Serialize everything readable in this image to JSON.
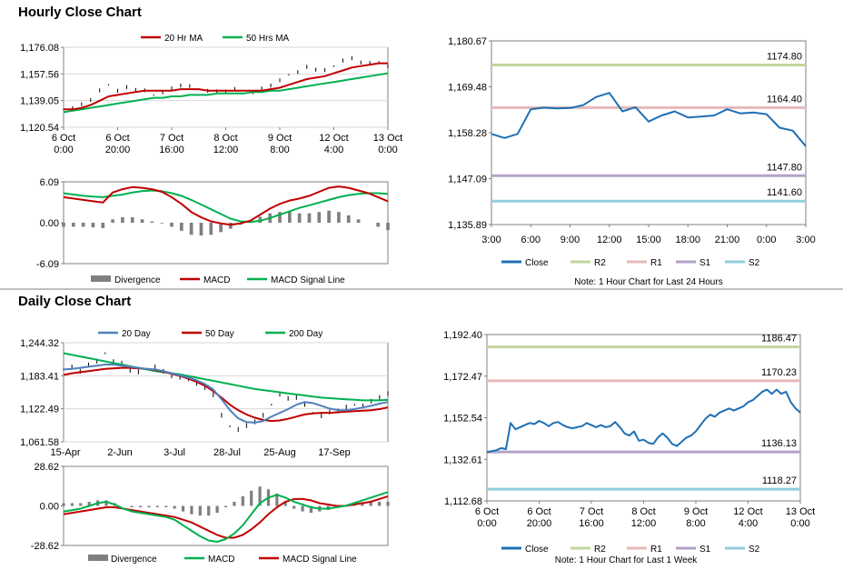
{
  "sections": {
    "hourly_title": "Hourly Close Chart",
    "daily_title": "Daily Close Chart"
  },
  "colors": {
    "red": "#c00000",
    "green": "#00b050",
    "blue": "#1f6fb5",
    "lightblue": "#4f81bd",
    "r2": "#c3d69b",
    "r1": "#e6b9b8",
    "s1": "#b3a2c7",
    "s2": "#92cddc",
    "divergence": "#7f7f7f",
    "grid": "#d9d9d9"
  },
  "chart_data": [
    {
      "id": "hourly_price",
      "type": "line",
      "legend": [
        "20 Hr MA",
        "50 Hrs MA"
      ],
      "y_ticks": [
        "1,176.08",
        "1,157.56",
        "1,139.05",
        "1,120.54"
      ],
      "ylim": [
        1120.54,
        1176.08
      ],
      "x_ticks": [
        [
          "6 Oct",
          "0:00"
        ],
        [
          "6 Oct",
          "20:00"
        ],
        [
          "7 Oct",
          "16:00"
        ],
        [
          "8 Oct",
          "12:00"
        ],
        [
          "9 Oct",
          "8:00"
        ],
        [
          "12 Oct",
          "4:00"
        ],
        [
          "13 Oct",
          "0:00"
        ]
      ],
      "close": [
        1133,
        1134,
        1136,
        1140,
        1146,
        1150,
        1146,
        1148,
        1147,
        1146,
        1143,
        1145,
        1147,
        1150,
        1149,
        1147,
        1146,
        1145,
        1146,
        1147,
        1146,
        1145,
        1147,
        1150,
        1153,
        1157,
        1159,
        1162,
        1161,
        1160,
        1163,
        1167,
        1168,
        1166,
        1165,
        1166,
        1163
      ],
      "ma20": [
        1133,
        1133,
        1134,
        1136,
        1139,
        1142,
        1143,
        1144,
        1145,
        1146,
        1146,
        1146,
        1146,
        1147,
        1147,
        1147,
        1146,
        1146,
        1146,
        1146,
        1146,
        1146,
        1146,
        1147,
        1148,
        1150,
        1152,
        1154,
        1155,
        1156,
        1158,
        1160,
        1162,
        1163,
        1164,
        1165,
        1165
      ],
      "ma50": [
        1131,
        1132,
        1133,
        1134,
        1135,
        1136,
        1137,
        1138,
        1139,
        1140,
        1141,
        1141,
        1142,
        1142,
        1143,
        1143,
        1143,
        1144,
        1144,
        1144,
        1144,
        1145,
        1145,
        1146,
        1146,
        1147,
        1148,
        1149,
        1150,
        1151,
        1152,
        1153,
        1154,
        1155,
        1156,
        1157,
        1158
      ]
    },
    {
      "id": "hourly_macd",
      "type": "line",
      "legend": [
        "Divergence",
        "MACD",
        "MACD Signal Line"
      ],
      "y_ticks": [
        "6.09",
        "0.00",
        "-6.09"
      ],
      "ylim": [
        -6.09,
        6.09
      ],
      "macd": [
        3.8,
        3.6,
        3.4,
        3.2,
        3.0,
        4.5,
        5.0,
        5.3,
        5.2,
        5.0,
        4.6,
        3.8,
        2.8,
        1.6,
        0.8,
        0.2,
        -0.1,
        -0.3,
        -0.1,
        0.3,
        1.2,
        2.1,
        2.8,
        3.3,
        3.6,
        4.0,
        4.6,
        5.2,
        5.4,
        5.2,
        4.8,
        4.4,
        3.8,
        3.2
      ],
      "signal": [
        4.4,
        4.2,
        4.0,
        3.9,
        3.8,
        4.0,
        4.2,
        4.5,
        4.7,
        4.8,
        4.7,
        4.4,
        4.0,
        3.4,
        2.7,
        2.0,
        1.3,
        0.6,
        0.2,
        0.1,
        0.3,
        0.7,
        1.2,
        1.7,
        2.2,
        2.6,
        3.0,
        3.4,
        3.8,
        4.1,
        4.3,
        4.4,
        4.4,
        4.3
      ],
      "divergence": [
        -0.6,
        -0.6,
        -0.6,
        -0.7,
        -0.8,
        0.5,
        0.8,
        0.8,
        0.5,
        0.2,
        -0.1,
        -0.6,
        -1.2,
        -1.8,
        -1.9,
        -1.8,
        -1.4,
        -0.9,
        -0.3,
        0.2,
        0.9,
        1.4,
        1.6,
        1.6,
        1.4,
        1.4,
        1.6,
        1.8,
        1.6,
        1.1,
        0.5,
        0.0,
        -0.6,
        -1.1
      ]
    },
    {
      "id": "hourly_levels",
      "type": "line",
      "legend": [
        "Close",
        "R2",
        "R1",
        "S1",
        "S2"
      ],
      "y_ticks": [
        "1,180.67",
        "1,169.48",
        "1,158.28",
        "1,147.09",
        "1,135.89"
      ],
      "ylim": [
        1135.89,
        1180.67
      ],
      "x_ticks": [
        "3:00",
        "6:00",
        "9:00",
        "12:00",
        "15:00",
        "18:00",
        "21:00",
        "0:00",
        "3:00"
      ],
      "close": [
        1158,
        1157,
        1158,
        1164,
        1164.4,
        1164.2,
        1164.3,
        1165,
        1167,
        1168,
        1163.5,
        1164.5,
        1161,
        1162.5,
        1163.5,
        1162,
        1162.2,
        1162.5,
        1164,
        1163,
        1163.2,
        1162.8,
        1159.5,
        1158.8,
        1155
      ],
      "levels": {
        "R2": 1174.8,
        "R1": 1164.4,
        "S1": 1147.8,
        "S2": 1141.6
      },
      "level_labels": {
        "R2": "1174.80",
        "R1": "1164.40",
        "S1": "1147.80",
        "S2": "1141.60"
      },
      "note": "Note: 1 Hour Chart for Last 24 Hours"
    },
    {
      "id": "daily_price",
      "type": "line",
      "legend": [
        "20 Day",
        "50 Day",
        "200 Day"
      ],
      "y_ticks": [
        "1,244.32",
        "1,183.41",
        "1,122.49",
        "1,061.58"
      ],
      "ylim": [
        1061.58,
        1244.32
      ],
      "x_ticks": [
        "15-Apr",
        "2-Jun",
        "3-Jul",
        "28-Jul",
        "25-Aug",
        "17-Sep"
      ],
      "close": [
        1195,
        1200,
        1190,
        1205,
        1210,
        1225,
        1210,
        1205,
        1195,
        1190,
        1195,
        1200,
        1190,
        1185,
        1180,
        1175,
        1170,
        1160,
        1150,
        1110,
        1090,
        1085,
        1090,
        1100,
        1110,
        1130,
        1150,
        1140,
        1145,
        1130,
        1115,
        1110,
        1115,
        1120,
        1125,
        1130,
        1128,
        1135,
        1145,
        1150
      ],
      "ma20": [
        1195,
        1196,
        1198,
        1200,
        1202,
        1204,
        1204,
        1202,
        1200,
        1198,
        1196,
        1195,
        1192,
        1188,
        1184,
        1180,
        1175,
        1168,
        1158,
        1140,
        1120,
        1105,
        1098,
        1097,
        1100,
        1108,
        1115,
        1122,
        1130,
        1135,
        1133,
        1128,
        1123,
        1120,
        1120,
        1122,
        1125,
        1128,
        1132,
        1135
      ],
      "ma50": [
        1185,
        1188,
        1190,
        1192,
        1194,
        1196,
        1197,
        1198,
        1198,
        1197,
        1196,
        1194,
        1191,
        1187,
        1183,
        1178,
        1172,
        1165,
        1155,
        1143,
        1130,
        1120,
        1112,
        1106,
        1102,
        1100,
        1101,
        1104,
        1108,
        1112,
        1114,
        1115,
        1115,
        1116,
        1117,
        1118,
        1119,
        1120,
        1122,
        1125
      ],
      "ma200": [
        1225,
        1222,
        1219,
        1216,
        1213,
        1210,
        1207,
        1204,
        1201,
        1198,
        1195,
        1192,
        1190,
        1188,
        1186,
        1183,
        1180,
        1177,
        1174,
        1171,
        1168,
        1165,
        1162,
        1159,
        1157,
        1155,
        1153,
        1151,
        1149,
        1147,
        1145,
        1143,
        1142,
        1141,
        1140,
        1139,
        1138,
        1138,
        1138,
        1139
      ]
    },
    {
      "id": "daily_macd",
      "type": "line",
      "legend": [
        "Divergence",
        "MACD",
        "MACD Signal Line"
      ],
      "y_ticks": [
        "28.62",
        "0.00",
        "-28.62"
      ],
      "ylim": [
        -28.62,
        28.62
      ],
      "macd": [
        -4,
        -3,
        -2,
        0,
        2,
        3,
        1,
        -2,
        -4,
        -5,
        -6,
        -7,
        -8,
        -10,
        -14,
        -18,
        -22,
        -25,
        -26,
        -24,
        -20,
        -14,
        -6,
        2,
        6,
        8,
        6,
        3,
        1,
        -1,
        -2,
        -2,
        -1,
        0,
        2,
        4,
        6,
        8,
        10
      ],
      "signal": [
        -6,
        -5,
        -4,
        -3,
        -2,
        -1,
        -1,
        -2,
        -3,
        -4,
        -5,
        -6,
        -7,
        -8,
        -10,
        -12,
        -15,
        -18,
        -21,
        -23,
        -23,
        -21,
        -17,
        -12,
        -6,
        -1,
        3,
        5,
        5,
        4,
        2,
        1,
        0,
        0,
        1,
        2,
        3,
        5,
        7
      ],
      "divergence": [
        2,
        2,
        2,
        3,
        4,
        4,
        2,
        0,
        -1,
        -1,
        -1,
        -1,
        -1,
        -2,
        -4,
        -6,
        -7,
        -7,
        -5,
        -1,
        3,
        7,
        11,
        14,
        12,
        9,
        3,
        -2,
        -4,
        -5,
        -4,
        -3,
        -1,
        0,
        1,
        2,
        3,
        3,
        3
      ]
    },
    {
      "id": "daily_levels",
      "type": "line",
      "legend": [
        "Close",
        "R2",
        "R1",
        "S1",
        "S2"
      ],
      "y_ticks": [
        "1,192.40",
        "1,172.47",
        "1,152.54",
        "1,132.61",
        "1,112.68"
      ],
      "ylim": [
        1112.68,
        1192.4
      ],
      "x_ticks": [
        [
          "6 Oct",
          "0:00"
        ],
        [
          "6 Oct",
          "20:00"
        ],
        [
          "7 Oct",
          "16:00"
        ],
        [
          "8 Oct",
          "12:00"
        ],
        [
          "9 Oct",
          "8:00"
        ],
        [
          "12 Oct",
          "4:00"
        ],
        [
          "13 Oct",
          "0:00"
        ]
      ],
      "close": [
        1136,
        1136.5,
        1137,
        1138,
        1137.5,
        1150,
        1147,
        1148,
        1149,
        1150,
        1149.5,
        1151,
        1150,
        1148.5,
        1150,
        1150.5,
        1149,
        1148,
        1147.5,
        1148,
        1148.5,
        1150,
        1149,
        1148,
        1149,
        1148,
        1148.5,
        1150.5,
        1148,
        1145,
        1144,
        1146,
        1141.5,
        1142,
        1140.5,
        1140,
        1143,
        1145,
        1143,
        1140,
        1139,
        1141,
        1143,
        1144,
        1146,
        1149,
        1152,
        1154,
        1153,
        1155,
        1156,
        1157,
        1156,
        1157,
        1158,
        1160,
        1161,
        1163,
        1165,
        1166,
        1164,
        1166,
        1164,
        1165,
        1160,
        1157,
        1155
      ],
      "levels": {
        "R2": 1186.47,
        "R1": 1170.23,
        "S1": 1136.13,
        "S2": 1118.27
      },
      "level_labels": {
        "R2": "1186.47",
        "R1": "1170.23",
        "S1": "1136.13",
        "S2": "1118.27"
      },
      "note": "Note: 1 Hour Chart for Last 1 Week"
    }
  ]
}
